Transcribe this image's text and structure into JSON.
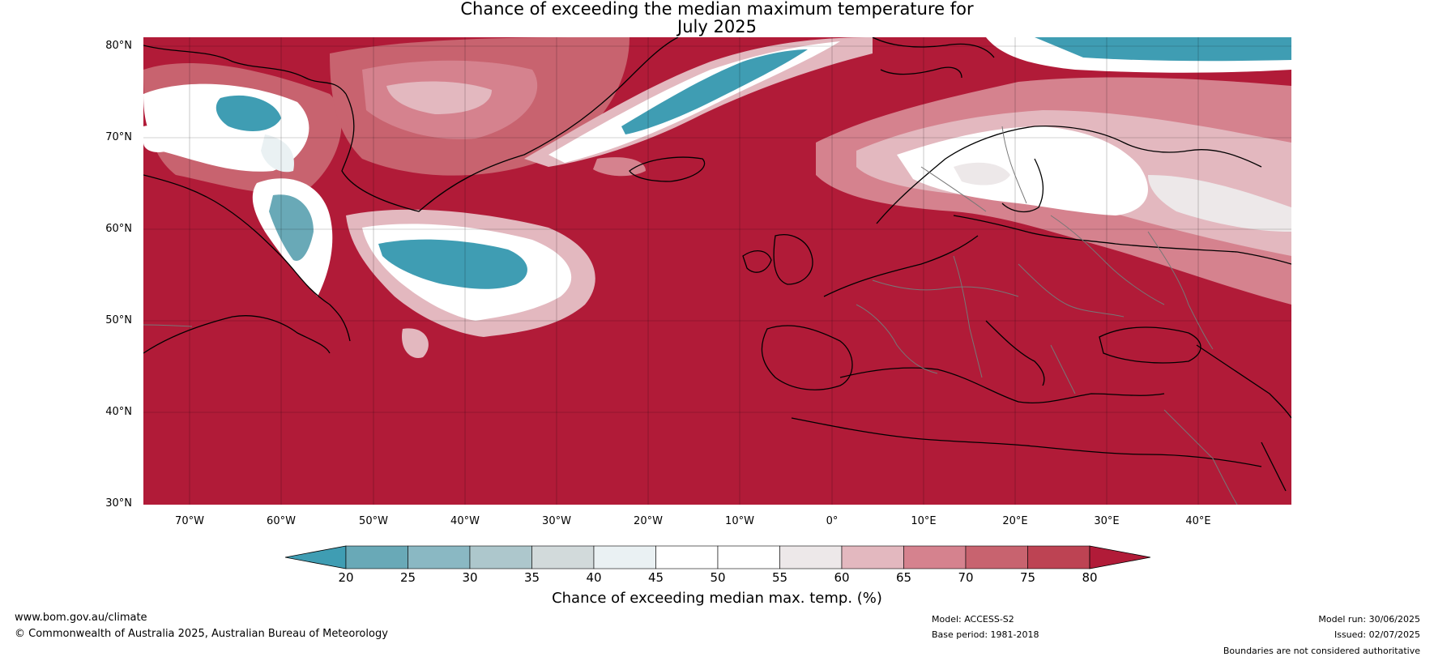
{
  "title_line1": "Chance of exceeding the median maximum temperature for",
  "title_line2": "July 2025",
  "lat_ticks": [
    "80°N",
    "70°N",
    "60°N",
    "50°N",
    "40°N",
    "30°N"
  ],
  "lon_ticks": [
    "70°W",
    "60°W",
    "50°W",
    "40°W",
    "30°W",
    "20°W",
    "10°W",
    "0°",
    "10°E",
    "20°E",
    "30°E",
    "40°E"
  ],
  "colorbar": {
    "title": "Chance of exceeding median max. temp. (%)",
    "labels": [
      "20",
      "25",
      "30",
      "35",
      "40",
      "45",
      "50",
      "55",
      "60",
      "65",
      "70",
      "75",
      "80"
    ],
    "colors": [
      "#3f9db3",
      "#69a9b7",
      "#8ab8c3",
      "#adc7cc",
      "#d2dadb",
      "#eaf1f3",
      "#ffffff",
      "#ffffff",
      "#ede8e9",
      "#e3b8bf",
      "#d5828e",
      "#c8636f",
      "#bd4353",
      "#b11b38"
    ]
  },
  "footer": {
    "url": "www.bom.gov.au/climate",
    "copyright": "© Commonwealth of Australia 2025, Australian Bureau of Meteorology",
    "model": "Model: ACCESS-S2",
    "base_period": "Base period: 1981-2018",
    "model_run": "Model run: 30/06/2025",
    "issued": "Issued: 02/07/2025",
    "disclaimer": "Boundaries are not considered authoritative"
  }
}
